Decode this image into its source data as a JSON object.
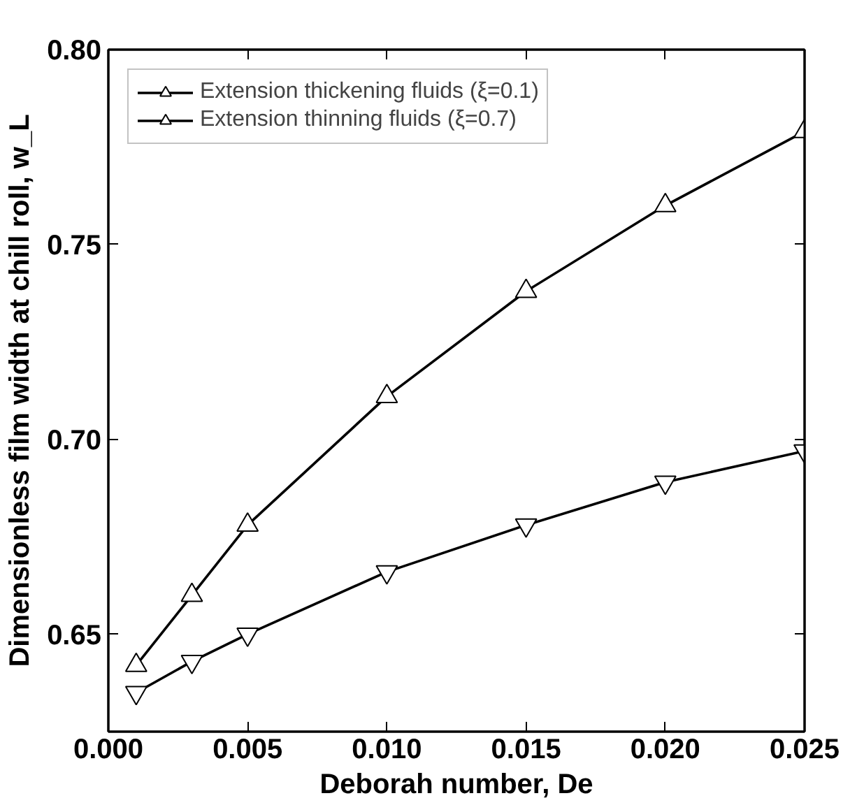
{
  "chart_data": {
    "type": "line",
    "xlabel": "Deborah number, De",
    "ylabel": "Dimensionless film width at chill roll, w_L",
    "x": [
      0.001,
      0.003,
      0.005,
      0.01,
      0.015,
      0.02,
      0.025
    ],
    "series": [
      {
        "name": "Extension thickening fluids (ξ=0.1)",
        "color": "#000000",
        "marker": "triangle",
        "values": [
          0.642,
          0.66,
          0.678,
          0.711,
          0.738,
          0.76,
          0.779
        ]
      },
      {
        "name": "Extension thinning fluids (ξ=0.7)",
        "color": "#000000",
        "marker": "triangle",
        "values": [
          0.635,
          0.643,
          0.65,
          0.666,
          0.678,
          0.689,
          0.697
        ]
      }
    ],
    "xlim": [
      0.0,
      0.025
    ],
    "ylim": [
      0.625,
      0.8
    ],
    "xticks": [
      {
        "value": 0,
        "label": "0.000"
      },
      {
        "value": 0.005,
        "label": "0.005"
      },
      {
        "value": 0.01,
        "label": "0.010"
      },
      {
        "value": 0.015,
        "label": "0.015"
      },
      {
        "value": 0.02,
        "label": "0.020"
      },
      {
        "value": 0.025,
        "label": "0.025"
      }
    ],
    "yticks": [
      {
        "value": 0.65,
        "label": "0.65"
      },
      {
        "value": 0.7,
        "label": "0.70"
      },
      {
        "value": 0.75,
        "label": "0.75"
      },
      {
        "value": 0.8,
        "label": "0.80"
      }
    ],
    "grid": false,
    "legend": "top left",
    "line_style": "solid"
  }
}
